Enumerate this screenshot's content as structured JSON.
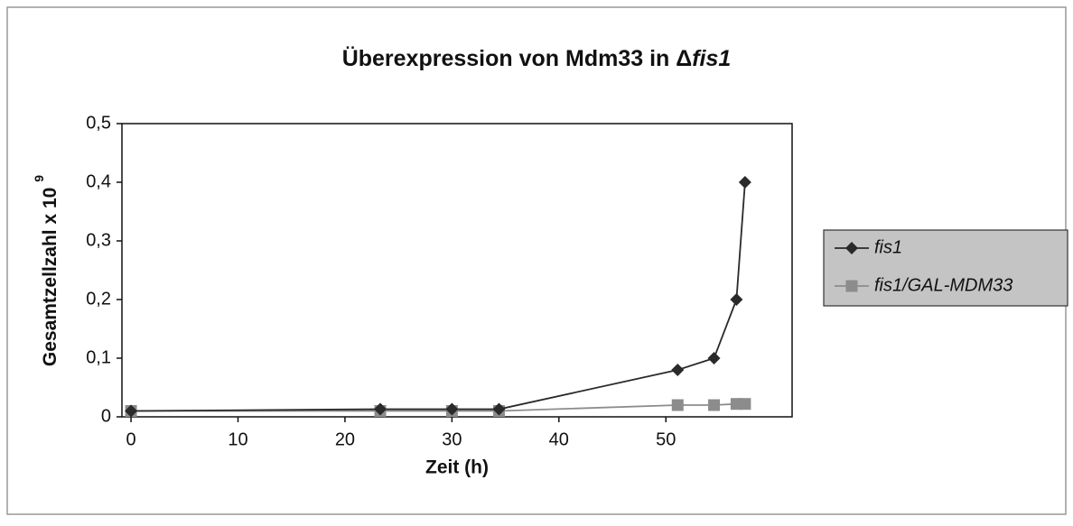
{
  "chart_data": {
    "type": "scatter",
    "title": [
      "Überexpression von Mdm33 in Δ",
      "fis1"
    ],
    "xlabel": "Zeit (h)",
    "ylabel": [
      "Gesamtzellzahl x 10",
      "9"
    ],
    "xlim": [
      -0.85,
      61.8
    ],
    "xticks": [
      0,
      10,
      20,
      30,
      40,
      50
    ],
    "ylim": [
      0,
      0.5
    ],
    "yticks": [
      0,
      {
        "value": 0.1,
        "label": "0,1"
      },
      {
        "value": 0.2,
        "label": "0,2"
      },
      {
        "value": 0.3,
        "label": "0,3"
      },
      {
        "value": 0.4,
        "label": "0,4"
      },
      {
        "value": 0.5,
        "label": "0,5"
      }
    ],
    "legend": "right",
    "series": [
      {
        "name": "fis1",
        "color": "#2a2a2a",
        "marker": "diamond",
        "x": [
          0,
          23.3,
          30,
          34.4,
          51.1,
          54.5,
          56.6,
          57.4
        ],
        "values": [
          0.01,
          0.013,
          0.013,
          0.013,
          0.08,
          0.1,
          0.2,
          0.4
        ]
      },
      {
        "name": "fis1/GAL-MDM33",
        "color": "#8c8c8c",
        "marker": "square",
        "x": [
          0,
          23.3,
          30,
          34.4,
          51.1,
          54.5,
          56.6,
          57.4
        ],
        "values": [
          0.01,
          0.01,
          0.01,
          0.01,
          0.02,
          0.02,
          0.022,
          0.022
        ]
      }
    ]
  }
}
